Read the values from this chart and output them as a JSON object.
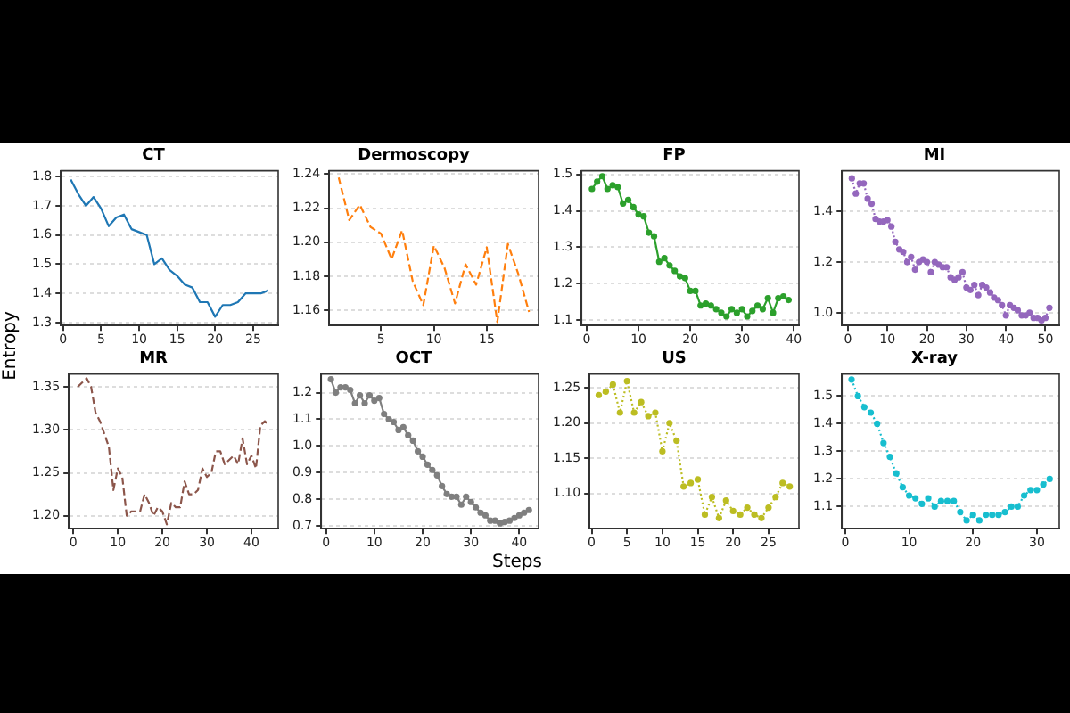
{
  "chart_data": [
    {
      "type": "line",
      "title": "CT",
      "ylabel": "Entropy",
      "color": "#1f77b4",
      "line_style": "solid",
      "marker": "none",
      "grid": "y",
      "xlim": [
        -0.3,
        28.3
      ],
      "xticks": [
        0,
        5,
        10,
        15,
        20,
        25
      ],
      "ylim": [
        1.29,
        1.82
      ],
      "yticks": [
        1.3,
        1.4,
        1.5,
        1.6,
        1.7,
        1.8
      ],
      "x": [
        1,
        2,
        3,
        4,
        5,
        6,
        7,
        8,
        9,
        10,
        11,
        12,
        13,
        14,
        15,
        16,
        17,
        18,
        19,
        20,
        21,
        22,
        23,
        24,
        25,
        26,
        27
      ],
      "values": [
        1.79,
        1.74,
        1.7,
        1.73,
        1.69,
        1.63,
        1.66,
        1.67,
        1.62,
        1.61,
        1.6,
        1.5,
        1.52,
        1.48,
        1.46,
        1.43,
        1.42,
        1.37,
        1.37,
        1.32,
        1.36,
        1.36,
        1.37,
        1.4,
        1.4,
        1.4,
        1.41
      ]
    },
    {
      "type": "line",
      "title": "Dermoscopy",
      "color": "#ff7f0e",
      "line_style": "dashed",
      "marker": "none",
      "grid": "y",
      "xlim": [
        0.1,
        19.9
      ],
      "xticks": [
        5,
        10,
        15
      ],
      "ylim": [
        1.151,
        1.242
      ],
      "yticks": [
        1.16,
        1.18,
        {
          "value": 1.2,
          "label": "1.20"
        },
        1.22,
        1.24
      ],
      "x": [
        1,
        2,
        3,
        4,
        5,
        6,
        7,
        8,
        9,
        10,
        11,
        12,
        13,
        14,
        15,
        16,
        17,
        18,
        19
      ],
      "values": [
        1.238,
        1.213,
        1.222,
        1.209,
        1.205,
        1.19,
        1.207,
        1.177,
        1.163,
        1.198,
        1.185,
        1.164,
        1.187,
        1.175,
        1.197,
        1.153,
        1.199,
        1.181,
        1.159
      ]
    },
    {
      "type": "line",
      "title": "FP",
      "color": "#2ca02c",
      "line_style": "solid",
      "marker": "circle",
      "grid": "y",
      "xlim": [
        -1,
        41
      ],
      "xticks": [
        0,
        10,
        20,
        30,
        40
      ],
      "ylim": [
        1.085,
        1.51
      ],
      "yticks": [
        1.1,
        1.2,
        1.3,
        1.4,
        1.5
      ],
      "x": [
        1,
        2,
        3,
        4,
        5,
        6,
        7,
        8,
        9,
        10,
        11,
        12,
        13,
        14,
        15,
        16,
        17,
        18,
        19,
        20,
        21,
        22,
        23,
        24,
        25,
        26,
        27,
        28,
        29,
        30,
        31,
        32,
        33,
        34,
        35,
        36,
        37,
        38,
        39
      ],
      "values": [
        1.46,
        1.48,
        1.495,
        1.46,
        1.47,
        1.465,
        1.42,
        1.43,
        1.41,
        1.39,
        1.385,
        1.34,
        1.33,
        1.26,
        1.27,
        1.25,
        1.235,
        1.22,
        1.215,
        1.18,
        1.18,
        1.14,
        1.145,
        1.14,
        1.13,
        1.12,
        1.11,
        1.13,
        1.12,
        1.13,
        1.11,
        1.125,
        1.14,
        1.13,
        1.16,
        1.12,
        1.16,
        1.165,
        1.155
      ]
    },
    {
      "type": "line",
      "title": "MI",
      "color": "#9467bd",
      "line_style": "dotted",
      "marker": "circle",
      "grid": "y",
      "xlim": [
        -1.5,
        53.5
      ],
      "xticks": [
        0,
        10,
        20,
        30,
        40,
        50
      ],
      "ylim": [
        0.95,
        1.56
      ],
      "yticks": [
        {
          "value": 1.0,
          "label": "1.0"
        },
        1.2,
        1.4
      ],
      "x": [
        1,
        2,
        3,
        4,
        5,
        6,
        7,
        8,
        9,
        10,
        11,
        12,
        13,
        14,
        15,
        16,
        17,
        18,
        19,
        20,
        21,
        22,
        23,
        24,
        25,
        26,
        27,
        28,
        29,
        30,
        31,
        32,
        33,
        34,
        35,
        36,
        37,
        38,
        39,
        40,
        41,
        42,
        43,
        44,
        45,
        46,
        47,
        48,
        49,
        50,
        51
      ],
      "values": [
        1.53,
        1.47,
        1.51,
        1.51,
        1.45,
        1.43,
        1.37,
        1.36,
        1.36,
        1.365,
        1.34,
        1.28,
        1.25,
        1.24,
        1.2,
        1.22,
        1.17,
        1.2,
        1.21,
        1.2,
        1.16,
        1.2,
        1.19,
        1.18,
        1.18,
        1.14,
        1.13,
        1.14,
        1.16,
        1.1,
        1.09,
        1.11,
        1.07,
        1.11,
        1.1,
        1.08,
        1.06,
        1.05,
        1.03,
        0.99,
        1.03,
        1.02,
        1.01,
        0.99,
        0.99,
        1.0,
        0.98,
        0.98,
        0.97,
        0.98,
        1.02
      ]
    },
    {
      "type": "line",
      "title": "MR",
      "color": "#8c564b",
      "line_style": "dashed",
      "marker": "none",
      "grid": "y",
      "xlim": [
        -1,
        46
      ],
      "xticks": [
        0,
        10,
        20,
        30,
        40
      ],
      "ylim": [
        1.185,
        1.365
      ],
      "yticks": [
        {
          "value": 1.2,
          "label": "1.20"
        },
        1.25,
        {
          "value": 1.3,
          "label": "1.30"
        },
        1.35
      ],
      "x": [
        1,
        2,
        3,
        4,
        5,
        6,
        7,
        8,
        9,
        10,
        11,
        12,
        13,
        14,
        15,
        16,
        17,
        18,
        19,
        20,
        21,
        22,
        23,
        24,
        25,
        26,
        27,
        28,
        29,
        30,
        31,
        32,
        33,
        34,
        35,
        36,
        37,
        38,
        39,
        40,
        41,
        42,
        43,
        44
      ],
      "values": [
        1.35,
        1.355,
        1.36,
        1.35,
        1.32,
        1.31,
        1.295,
        1.28,
        1.23,
        1.255,
        1.245,
        1.2,
        1.205,
        1.205,
        1.205,
        1.225,
        1.215,
        1.2,
        1.21,
        1.205,
        1.19,
        1.215,
        1.21,
        1.21,
        1.24,
        1.225,
        1.225,
        1.23,
        1.255,
        1.245,
        1.25,
        1.275,
        1.275,
        1.26,
        1.265,
        1.27,
        1.26,
        1.29,
        1.26,
        1.27,
        1.255,
        1.305,
        1.31,
        1.305
      ]
    },
    {
      "type": "line",
      "title": "OCT",
      "xlabel": "Steps",
      "color": "#7f7f7f",
      "line_style": "solid",
      "marker": "circle",
      "grid": "y",
      "xlim": [
        -1,
        44
      ],
      "xticks": [
        0,
        10,
        20,
        30,
        40
      ],
      "ylim": [
        0.69,
        1.27
      ],
      "yticks": [
        0.7,
        0.8,
        0.9,
        {
          "value": 1.0,
          "label": "1.0"
        },
        1.1,
        1.2
      ],
      "x": [
        1,
        2,
        3,
        4,
        5,
        6,
        7,
        8,
        9,
        10,
        11,
        12,
        13,
        14,
        15,
        16,
        17,
        18,
        19,
        20,
        21,
        22,
        23,
        24,
        25,
        26,
        27,
        28,
        29,
        30,
        31,
        32,
        33,
        34,
        35,
        36,
        37,
        38,
        39,
        40,
        41,
        42
      ],
      "values": [
        1.25,
        1.2,
        1.22,
        1.22,
        1.21,
        1.16,
        1.19,
        1.16,
        1.19,
        1.17,
        1.18,
        1.12,
        1.1,
        1.09,
        1.06,
        1.07,
        1.04,
        1.02,
        0.98,
        0.96,
        0.93,
        0.91,
        0.89,
        0.85,
        0.82,
        0.81,
        0.81,
        0.78,
        0.81,
        0.79,
        0.77,
        0.75,
        0.74,
        0.72,
        0.72,
        0.71,
        0.715,
        0.72,
        0.73,
        0.74,
        0.75,
        0.76
      ]
    },
    {
      "type": "line",
      "title": "US",
      "color": "#bcbd22",
      "line_style": "dotted",
      "marker": "circle",
      "grid": "y",
      "xlim": [
        -0.3,
        29.3
      ],
      "xticks": [
        0,
        5,
        10,
        15,
        20,
        25
      ],
      "ylim": [
        1.05,
        1.27
      ],
      "yticks": [
        {
          "value": 1.1,
          "label": "1.10"
        },
        1.15,
        {
          "value": 1.2,
          "label": "1.20"
        },
        1.25
      ],
      "x": [
        1,
        2,
        3,
        4,
        5,
        6,
        7,
        8,
        9,
        10,
        11,
        12,
        13,
        14,
        15,
        16,
        17,
        18,
        19,
        20,
        21,
        22,
        23,
        24,
        25,
        26,
        27,
        28
      ],
      "values": [
        1.24,
        1.245,
        1.255,
        1.215,
        1.26,
        1.215,
        1.23,
        1.21,
        1.215,
        1.16,
        1.2,
        1.175,
        1.11,
        1.115,
        1.12,
        1.07,
        1.095,
        1.065,
        1.09,
        1.075,
        1.07,
        1.08,
        1.07,
        1.065,
        1.08,
        1.095,
        1.115,
        1.11
      ]
    },
    {
      "type": "line",
      "title": "X-ray",
      "color": "#17becf",
      "line_style": "dotted",
      "marker": "circle",
      "grid": "y",
      "xlim": [
        -0.5,
        33.5
      ],
      "xticks": [
        0,
        10,
        20,
        30
      ],
      "ylim": [
        1.02,
        1.58
      ],
      "yticks": [
        1.1,
        1.2,
        1.3,
        1.4,
        1.5
      ],
      "x": [
        1,
        2,
        3,
        4,
        5,
        6,
        7,
        8,
        9,
        10,
        11,
        12,
        13,
        14,
        15,
        16,
        17,
        18,
        19,
        20,
        21,
        22,
        23,
        24,
        25,
        26,
        27,
        28,
        29,
        30,
        31,
        32
      ],
      "values": [
        1.56,
        1.5,
        1.46,
        1.44,
        1.4,
        1.33,
        1.28,
        1.22,
        1.17,
        1.14,
        1.13,
        1.11,
        1.13,
        1.1,
        1.12,
        1.12,
        1.12,
        1.08,
        1.05,
        1.07,
        1.05,
        1.07,
        1.07,
        1.07,
        1.08,
        1.1,
        1.1,
        1.14,
        1.16,
        1.16,
        1.18,
        1.2
      ]
    }
  ]
}
